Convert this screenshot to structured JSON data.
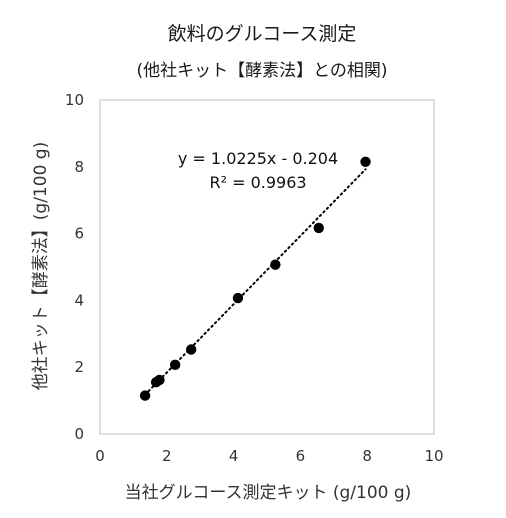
{
  "chart_data": {
    "type": "scatter",
    "title": "飲料のグルコース測定",
    "subtitle": "(他社キット【酵素法】との相関)",
    "xlabel": "当社グルコース測定キット (g/100 g)",
    "ylabel": "他社キット【酵素法】(g/100 g)",
    "xlim": [
      0,
      10
    ],
    "ylim": [
      0,
      10
    ],
    "xticks": [
      "0",
      "2",
      "4",
      "6",
      "8",
      "10"
    ],
    "yticks": [
      "0",
      "2",
      "4",
      "6",
      "8",
      "10"
    ],
    "grid": false,
    "series": [
      {
        "x": [
          1.35,
          1.68,
          1.78,
          2.25,
          2.73,
          4.13,
          5.25,
          6.55,
          7.95
        ],
        "y": [
          1.15,
          1.55,
          1.62,
          2.07,
          2.53,
          4.07,
          5.07,
          6.17,
          8.15
        ],
        "color": "#000000"
      }
    ],
    "trendline": {
      "style": "dotted",
      "slope": 1.0225,
      "intercept": -0.204,
      "x_range": [
        1.35,
        7.95
      ],
      "equation": "y = 1.0225x - 0.204",
      "r2_label": "R² = 0.9963"
    }
  }
}
